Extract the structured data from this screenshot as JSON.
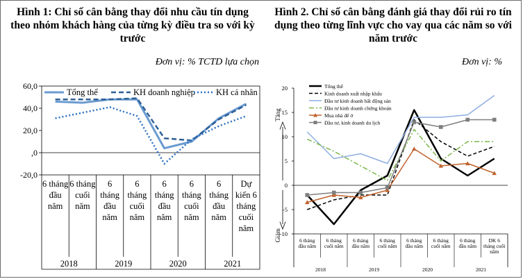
{
  "figure1": {
    "title": "Hình 1:  Chỉ số cân bằng thay đổi nhu cầu tín dụng theo nhóm khách hàng của từng kỳ điều tra so với kỳ trước",
    "unit": "Đơn vị: % TCTD lựa chọn"
  },
  "figure2": {
    "title": "Hình 2. Chỉ số cân bằng đánh giá thay đổi rủi ro tín dụng theo từng lĩnh vực cho vay qua các năm so với năm trước",
    "unit": "Đơn vị: %"
  },
  "chart_data": [
    {
      "type": "line",
      "yticks": [
        "60,0",
        "40,0",
        "20,0",
        ",0",
        "-20,0"
      ],
      "ylim": [
        -20,
        60
      ],
      "categories": [
        [
          "6 tháng",
          "đầu",
          "năm"
        ],
        [
          "6 tháng",
          "cuối",
          "năm"
        ],
        [
          "6",
          "tháng",
          "đầu",
          "năm"
        ],
        [
          "6",
          "tháng",
          "cuối",
          "năm"
        ],
        [
          "6",
          "tháng",
          "đầu",
          "năm"
        ],
        [
          "6",
          "tháng",
          "cuối",
          "năm"
        ],
        [
          "6",
          "tháng",
          "đầu",
          "năm"
        ],
        [
          "Dự",
          "kiến 6",
          "tháng",
          "cuối",
          "năm"
        ]
      ],
      "years": [
        "2018",
        "2019",
        "2020",
        "2021"
      ],
      "legend": "top",
      "series": [
        {
          "name": "Tổng thể",
          "color": "#6a9bd1",
          "style": "solid",
          "values": [
            46,
            45,
            48,
            48,
            4,
            10,
            31,
            44
          ]
        },
        {
          "name": "KH doanh nghiệp",
          "color": "#2f5f96",
          "style": "dashed",
          "values": [
            48,
            48,
            48,
            49,
            13,
            11,
            30,
            43
          ]
        },
        {
          "name": "KH cá nhân",
          "color": "#2a6fc0",
          "style": "dotted",
          "values": [
            31,
            36,
            41,
            33,
            -10,
            12,
            24,
            33
          ]
        }
      ]
    },
    {
      "type": "line",
      "yticks": [
        "20",
        "15",
        "10",
        "5",
        "0",
        "-5",
        "-10"
      ],
      "ylim": [
        -10,
        20
      ],
      "axis_up_label": "Tăng",
      "axis_down_label": "Giảm",
      "categories": [
        [
          "6 tháng",
          "đầu năm"
        ],
        [
          "6 tháng",
          "cuối năm"
        ],
        [
          "6 tháng",
          "đầu năm"
        ],
        [
          "6 tháng",
          "cuối năm"
        ],
        [
          "6 tháng",
          "đầu năm"
        ],
        [
          "6 tháng",
          "cuối năm"
        ],
        [
          "6 tháng",
          "đầu năm"
        ],
        [
          "DK 6",
          "tháng cuối",
          "năm"
        ]
      ],
      "years": [
        "2018",
        "2019",
        "2020",
        "2021"
      ],
      "legend": "top-left",
      "series": [
        {
          "name": "Tổng thể",
          "color": "#000000",
          "style": "solid",
          "marker": "none",
          "values": [
            -2,
            -8,
            -1,
            2,
            15.5,
            5.5,
            2,
            5.5
          ]
        },
        {
          "name": "Kinh doanh xuất nhập khẩu",
          "color": "#000000",
          "style": "dashed",
          "marker": "none",
          "values": [
            -5,
            -3,
            -2,
            -2,
            13.5,
            9,
            6,
            8
          ]
        },
        {
          "name": "Đầu tư kinh doanh bất động sản",
          "color": "#8eaee0",
          "style": "solid",
          "marker": "none",
          "values": [
            11,
            5.5,
            6.5,
            4.5,
            14,
            14,
            14.5,
            18.5
          ]
        },
        {
          "name": "Đầu tư kinh doanh chứng khoán",
          "color": "#7ab648",
          "style": "dashdot",
          "marker": "none",
          "values": [
            9.5,
            7,
            4,
            1,
            11.5,
            5,
            9,
            9
          ]
        },
        {
          "name": "Mua nhà để ở",
          "color": "#c0622b",
          "style": "solid",
          "marker": "triangle",
          "values": [
            -3.5,
            -2,
            -2.5,
            -1,
            7.5,
            4,
            4.5,
            2.5
          ]
        },
        {
          "name": "Đầu tư, kinh doanh du lịch",
          "color": "#7f7f7f",
          "style": "solid",
          "marker": "square",
          "values": [
            -2,
            -1.5,
            -1.5,
            -0.5,
            13,
            12,
            13.5,
            13.5
          ]
        }
      ]
    }
  ]
}
